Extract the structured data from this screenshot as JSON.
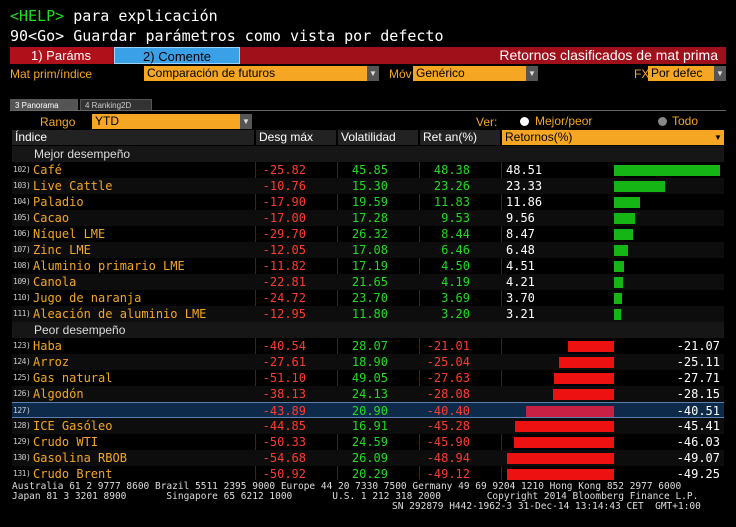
{
  "header": {
    "help_key": "<HELP>",
    "help_text": "para explicación",
    "go_key": "90<Go>",
    "go_text": "Guardar parámetros como vista por defecto"
  },
  "tabs": {
    "tab1": "1) Paráms",
    "tab2": "2) Comente",
    "title": "Retornos clasificados de mat prima"
  },
  "selectors": {
    "matprim_label": "Mat prim/índice",
    "matprim_value": "Comparación de futuros",
    "mov_label": "Móv",
    "mov_value": "Genérico",
    "fx_label": "FX",
    "fx_value": "Por defec"
  },
  "subtabs": [
    "3 Panorama",
    "4 Ranking2D"
  ],
  "range": {
    "label": "Rango",
    "value": "YTD",
    "ver_label": "Ver:",
    "opt_mejor": "Mejor/peor",
    "opt_todo": "Todo",
    "selected": "Mejor/peor"
  },
  "columns": [
    "Índice",
    "Desg máx",
    "Volatilidad",
    "Ret an(%)",
    "Retornos(%)"
  ],
  "sections": {
    "best": "Mejor desempeño",
    "worst": "Peor desempeño"
  },
  "best_rows": [
    {
      "num": "102)",
      "name": "Café",
      "desg": "-25.82",
      "vol": "45.85",
      "ret": "48.38",
      "retornos": "48.51",
      "value": 48.51
    },
    {
      "num": "103)",
      "name": "Live Cattle",
      "desg": "-10.76",
      "vol": "15.30",
      "ret": "23.26",
      "retornos": "23.33",
      "value": 23.33
    },
    {
      "num": "104)",
      "name": "Paladio",
      "desg": "-17.90",
      "vol": "19.59",
      "ret": "11.83",
      "retornos": "11.86",
      "value": 11.86
    },
    {
      "num": "105)",
      "name": "Cacao",
      "desg": "-17.00",
      "vol": "17.28",
      "ret": "9.53",
      "retornos": "9.56",
      "value": 9.56
    },
    {
      "num": "106)",
      "name": "Níquel LME",
      "desg": "-29.70",
      "vol": "26.32",
      "ret": "8.44",
      "retornos": "8.47",
      "value": 8.47
    },
    {
      "num": "107)",
      "name": "Zinc LME",
      "desg": "-12.05",
      "vol": "17.08",
      "ret": "6.46",
      "retornos": "6.48",
      "value": 6.48
    },
    {
      "num": "108)",
      "name": "Aluminio primario LME",
      "desg": "-11.82",
      "vol": "17.19",
      "ret": "4.50",
      "retornos": "4.51",
      "value": 4.51
    },
    {
      "num": "109)",
      "name": "Canola",
      "desg": "-22.81",
      "vol": "21.65",
      "ret": "4.19",
      "retornos": "4.21",
      "value": 4.21
    },
    {
      "num": "110)",
      "name": "Jugo de naranja",
      "desg": "-24.72",
      "vol": "23.70",
      "ret": "3.69",
      "retornos": "3.70",
      "value": 3.7
    },
    {
      "num": "111)",
      "name": "Aleación de aluminio LME",
      "desg": "-12.95",
      "vol": "11.80",
      "ret": "3.20",
      "retornos": "3.21",
      "value": 3.21
    }
  ],
  "worst_rows": [
    {
      "num": "123)",
      "name": "Haba",
      "desg": "-40.54",
      "vol": "28.07",
      "ret": "-21.01",
      "retornos": "-21.07",
      "value": -21.07
    },
    {
      "num": "124)",
      "name": "Arroz",
      "desg": "-27.61",
      "vol": "18.90",
      "ret": "-25.04",
      "retornos": "-25.11",
      "value": -25.11
    },
    {
      "num": "125)",
      "name": "Gas natural",
      "desg": "-51.10",
      "vol": "49.05",
      "ret": "-27.63",
      "retornos": "-27.71",
      "value": -27.71
    },
    {
      "num": "126)",
      "name": "Algodón",
      "desg": "-38.13",
      "vol": "24.13",
      "ret": "-28.08",
      "retornos": "-28.15",
      "value": -28.15
    },
    {
      "num": "127)",
      "name": "",
      "desg": "-43.89",
      "vol": "20.90",
      "ret": "-40.40",
      "retornos": "-40.51",
      "value": -40.51,
      "selected": true
    },
    {
      "num": "128)",
      "name": "ICE Gasóleo",
      "desg": "-44.85",
      "vol": "16.91",
      "ret": "-45.28",
      "retornos": "-45.41",
      "value": -45.41
    },
    {
      "num": "129)",
      "name": "Crudo WTI",
      "desg": "-50.33",
      "vol": "24.59",
      "ret": "-45.90",
      "retornos": "-46.03",
      "value": -46.03
    },
    {
      "num": "130)",
      "name": "Gasolina RBOB",
      "desg": "-54.68",
      "vol": "26.09",
      "ret": "-48.94",
      "retornos": "-49.07",
      "value": -49.07
    },
    {
      "num": "131)",
      "name": "Crudo Brent",
      "desg": "-50.92",
      "vol": "20.29",
      "ret": "-49.12",
      "retornos": "-49.25",
      "value": -49.25
    }
  ],
  "footer": {
    "line1": "Australia 61 2 9777 8600 Brazil 5511 2395 9000 Europe 44 20 7330 7500 Germany 49 69 9204 1210 Hong Kong 852 2977 6000",
    "line2": "Japan 81 3 3201 8900       Singapore 65 6212 1000       U.S. 1 212 318 2000        Copyright 2014 Bloomberg Finance L.P.",
    "line3": "SN 292879 H442-1962-3 31-Dec-14 13:14:43 CET  GMT+1:00"
  },
  "colors": {
    "accent_orange": "#f5a623",
    "positive_green": "#1fdc1f",
    "negative_red": "#ff3b30",
    "tab_red": "#a0101a",
    "tab_blue": "#3aa0e8"
  }
}
